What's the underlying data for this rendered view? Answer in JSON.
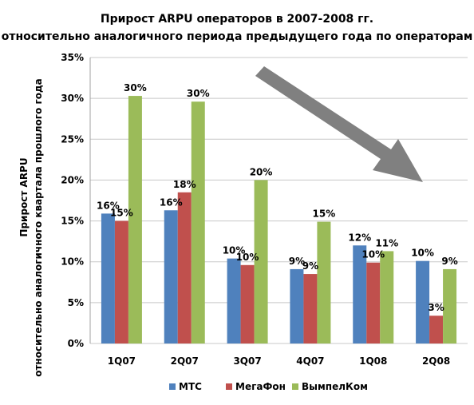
{
  "colors": {
    "mts": "#4F81BD",
    "megafon": "#C0504D",
    "vimpelcom": "#9BBB59",
    "grid": "#C8C8C8",
    "arrow": "#808080"
  },
  "chart_data": {
    "type": "bar",
    "title": "Прирост ARPU операторов в 2007-2008 гг.",
    "subtitle": "относительно аналогичного периода предыдущего года по операторам",
    "ylabel_line1": "Прирост ARPU",
    "ylabel_line2": "относительно аналогичного квартала прошлого года",
    "xlabel": "",
    "ylim": [
      0,
      35
    ],
    "yticks": [
      0,
      5,
      10,
      15,
      20,
      25,
      30,
      35
    ],
    "ytick_labels": [
      "0%",
      "5%",
      "10%",
      "15%",
      "20%",
      "25%",
      "30%",
      "35%"
    ],
    "grid": true,
    "legend_position": "bottom",
    "categories": [
      "1Q07",
      "2Q07",
      "3Q07",
      "4Q07",
      "1Q08",
      "2Q08"
    ],
    "series": [
      {
        "name": "МТС",
        "values": [
          15.9,
          16.3,
          10.4,
          9.1,
          12.0,
          10.1
        ],
        "labels": [
          "16%",
          "16%",
          "10%",
          "9%",
          "12%",
          "10%"
        ]
      },
      {
        "name": "МегаФон",
        "values": [
          15.0,
          18.5,
          9.6,
          8.5,
          9.9,
          3.4
        ],
        "labels": [
          "15%",
          "18%",
          "10%",
          "9%",
          "10%",
          "3%"
        ]
      },
      {
        "name": "ВымпелКом",
        "values": [
          30.3,
          29.6,
          20.0,
          14.9,
          11.3,
          9.1
        ],
        "labels": [
          "30%",
          "30%",
          "20%",
          "15%",
          "11%",
          "9%"
        ]
      }
    ],
    "annotation": "downward-trend-arrow"
  }
}
